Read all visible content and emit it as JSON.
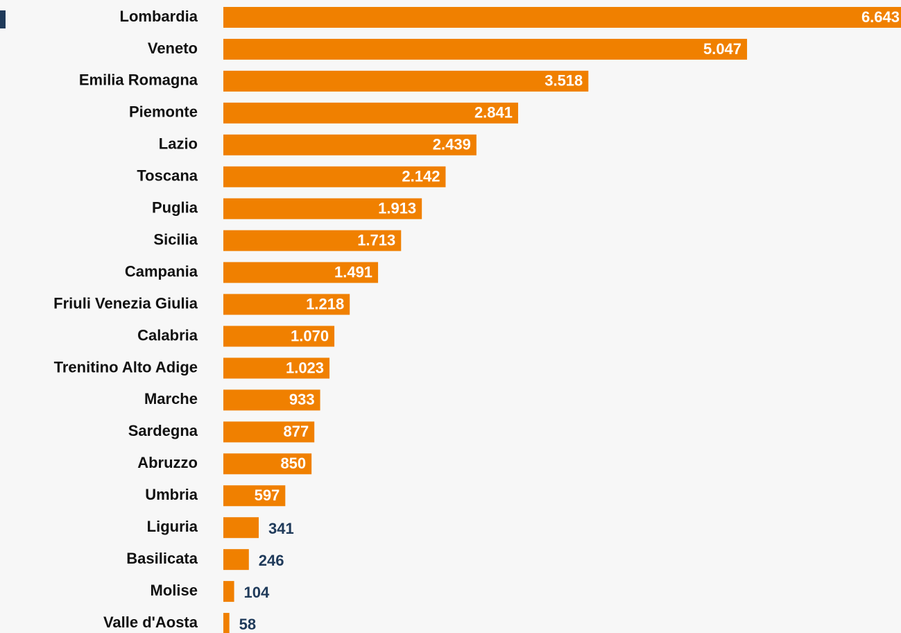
{
  "chart_data": {
    "type": "bar",
    "orientation": "horizontal",
    "categories": [
      "Lombardia",
      "Veneto",
      "Emilia Romagna",
      "Piemonte",
      "Lazio",
      "Toscana",
      "Puglia",
      "Sicilia",
      "Campania",
      "Friuli Venezia Giulia",
      "Calabria",
      "Trenitino Alto Adige",
      "Marche",
      "Sardegna",
      "Abruzzo",
      "Umbria",
      "Liguria",
      "Basilicata",
      "Molise",
      "Valle d'Aosta"
    ],
    "values": [
      6643,
      5047,
      3518,
      2841,
      2439,
      2142,
      1913,
      1713,
      1491,
      1218,
      1070,
      1023,
      933,
      877,
      850,
      597,
      341,
      246,
      104,
      58
    ],
    "value_labels": [
      "6.643",
      "5.047",
      "3.518",
      "2.841",
      "2.439",
      "2.142",
      "1.913",
      "1.713",
      "1.491",
      "1.218",
      "1.070",
      "1.023",
      "933",
      "877",
      "850",
      "597",
      "341",
      "246",
      "104",
      "58"
    ],
    "color": "#f08000"
  }
}
